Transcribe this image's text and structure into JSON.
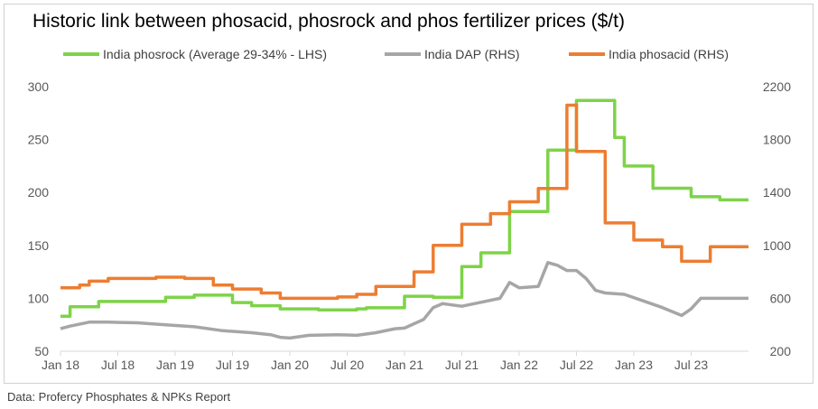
{
  "title": "Historic link between phosacid, phosrock and phos fertilizer prices ($/t)",
  "source": "Data: Profercy Phosphates & NPKs Report",
  "chart_data": {
    "type": "line",
    "title": "Historic link between phosacid, phosrock and phos fertilizer prices ($/t)",
    "x_tick_labels": [
      "Jan 18",
      "Jul 18",
      "Jan 19",
      "Jul 19",
      "Jan 20",
      "Jul 20",
      "Jan 21",
      "Jul 21",
      "Jan 22",
      "Jul 22",
      "Jan 23",
      "Jul 23"
    ],
    "y_left": {
      "ticks": [
        "50",
        "100",
        "150",
        "200",
        "250",
        "300"
      ],
      "range": [
        50,
        300
      ]
    },
    "y_right": {
      "ticks": [
        "200",
        "600",
        "1000",
        "1400",
        "1800",
        "2200"
      ],
      "range": [
        200,
        2200
      ]
    },
    "legend_position": "top",
    "gridlines": false,
    "series": [
      {
        "name": "India phosrock (Average 29-34% - LHS)",
        "axis": "left",
        "color": "#7ed348",
        "step": true,
        "points": [
          [
            "2018-01",
            83
          ],
          [
            "2018-02",
            92
          ],
          [
            "2018-05",
            97
          ],
          [
            "2018-12",
            101
          ],
          [
            "2019-03",
            103
          ],
          [
            "2019-07",
            96
          ],
          [
            "2019-09",
            93
          ],
          [
            "2019-12",
            90
          ],
          [
            "2020-04",
            89
          ],
          [
            "2020-08",
            90
          ],
          [
            "2020-09",
            91
          ],
          [
            "2021-01",
            102
          ],
          [
            "2021-04",
            101
          ],
          [
            "2021-07",
            130
          ],
          [
            "2021-09",
            143
          ],
          [
            "2021-12",
            182
          ],
          [
            "2022-04",
            240
          ],
          [
            "2022-07",
            287
          ],
          [
            "2022-11",
            252
          ],
          [
            "2022-12",
            225
          ],
          [
            "2023-03",
            204
          ],
          [
            "2023-07",
            196
          ],
          [
            "2023-10",
            193
          ],
          [
            "2023-12",
            193
          ]
        ]
      },
      {
        "name": "India DAP (RHS)",
        "axis": "right",
        "color": "#a6a6a6",
        "step": false,
        "points": [
          [
            "2018-01",
            370
          ],
          [
            "2018-02",
            390
          ],
          [
            "2018-04",
            420
          ],
          [
            "2018-06",
            420
          ],
          [
            "2018-09",
            415
          ],
          [
            "2018-12",
            400
          ],
          [
            "2019-03",
            385
          ],
          [
            "2019-06",
            355
          ],
          [
            "2019-09",
            340
          ],
          [
            "2019-11",
            325
          ],
          [
            "2019-12",
            305
          ],
          [
            "2020-01",
            300
          ],
          [
            "2020-03",
            320
          ],
          [
            "2020-06",
            325
          ],
          [
            "2020-08",
            320
          ],
          [
            "2020-10",
            340
          ],
          [
            "2020-12",
            370
          ],
          [
            "2021-01",
            375
          ],
          [
            "2021-03",
            440
          ],
          [
            "2021-04",
            530
          ],
          [
            "2021-05",
            560
          ],
          [
            "2021-07",
            540
          ],
          [
            "2021-09",
            570
          ],
          [
            "2021-11",
            600
          ],
          [
            "2021-12",
            720
          ],
          [
            "2022-01",
            680
          ],
          [
            "2022-03",
            690
          ],
          [
            "2022-04",
            870
          ],
          [
            "2022-05",
            850
          ],
          [
            "2022-06",
            810
          ],
          [
            "2022-07",
            810
          ],
          [
            "2022-08",
            750
          ],
          [
            "2022-09",
            660
          ],
          [
            "2022-10",
            640
          ],
          [
            "2022-12",
            630
          ],
          [
            "2023-02",
            580
          ],
          [
            "2023-04",
            530
          ],
          [
            "2023-06",
            470
          ],
          [
            "2023-07",
            520
          ],
          [
            "2023-08",
            600
          ],
          [
            "2023-10",
            600
          ],
          [
            "2023-12",
            600
          ]
        ]
      },
      {
        "name": "India phosacid (RHS)",
        "axis": "right",
        "color": "#ed7d31",
        "step": true,
        "points": [
          [
            "2018-01",
            680
          ],
          [
            "2018-03",
            700
          ],
          [
            "2018-04",
            730
          ],
          [
            "2018-06",
            750
          ],
          [
            "2018-11",
            760
          ],
          [
            "2019-02",
            750
          ],
          [
            "2019-05",
            700
          ],
          [
            "2019-07",
            670
          ],
          [
            "2019-10",
            640
          ],
          [
            "2019-12",
            600
          ],
          [
            "2020-06",
            610
          ],
          [
            "2020-08",
            630
          ],
          [
            "2020-10",
            690
          ],
          [
            "2020-12",
            690
          ],
          [
            "2021-02",
            800
          ],
          [
            "2021-04",
            1000
          ],
          [
            "2021-06",
            1000
          ],
          [
            "2021-07",
            1160
          ],
          [
            "2021-10",
            1240
          ],
          [
            "2021-12",
            1330
          ],
          [
            "2022-03",
            1430
          ],
          [
            "2022-06",
            1640
          ],
          [
            "2022-06",
            2060
          ],
          [
            "2022-07",
            1710
          ],
          [
            "2022-09",
            1710
          ],
          [
            "2022-10",
            1170
          ],
          [
            "2022-12",
            1170
          ],
          [
            "2023-01",
            1040
          ],
          [
            "2023-04",
            990
          ],
          [
            "2023-06",
            880
          ],
          [
            "2023-09",
            990
          ],
          [
            "2023-12",
            990
          ]
        ]
      }
    ]
  }
}
